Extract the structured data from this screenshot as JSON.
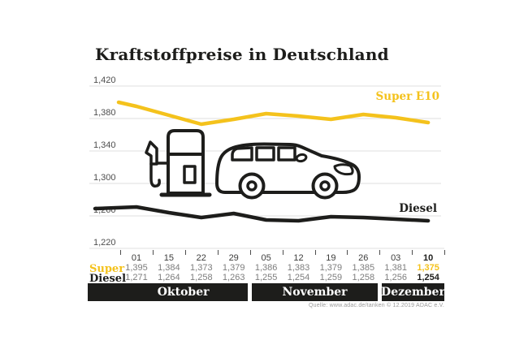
{
  "title": "Kraftstoffpreise in Deutschland",
  "source": "Quelle: www.adac.de/tanken   © 12.2019   ADAC e.V.",
  "colors": {
    "accent_yellow": "#F4C21C",
    "ink": "#1D1D1B",
    "grid": "#DFDFDF",
    "muted_value": "#7D7D7D",
    "month_bar_bg": "#1D1D1B",
    "month_bar_text": "#FFFFFF"
  },
  "chart_data": {
    "type": "line",
    "title": "Kraftstoffpreise in Deutschland",
    "ylabel": "",
    "xlabel": "",
    "ylim": [
      1.22,
      1.42
    ],
    "grid": true,
    "legend_position": "inline-right-of-lines",
    "y_tick_labels": [
      "1,420",
      "1,380",
      "1,340",
      "1,300",
      "1,260",
      "1,220"
    ],
    "y_ticks": [
      1.42,
      1.38,
      1.34,
      1.3,
      1.26,
      1.22
    ],
    "categories": [
      "01",
      "15",
      "22",
      "29",
      "05",
      "12",
      "19",
      "26",
      "03",
      "10"
    ],
    "month_groups": [
      {
        "label": "Oktober",
        "span": 4
      },
      {
        "label": "November",
        "span": 4
      },
      {
        "label": "Dezember",
        "span": 2
      }
    ],
    "series": [
      {
        "name": "Super E10",
        "color": "#F4C21C",
        "values": [
          1.395,
          1.384,
          1.373,
          1.379,
          1.386,
          1.383,
          1.379,
          1.385,
          1.381,
          1.375
        ],
        "edge_start_value": 1.4
      },
      {
        "name": "Diesel",
        "color": "#1D1D1B",
        "values": [
          1.271,
          1.264,
          1.258,
          1.263,
          1.255,
          1.254,
          1.259,
          1.258,
          1.256,
          1.254
        ],
        "edge_start_value": 1.269
      }
    ]
  },
  "table": {
    "row_labels": {
      "super": "Super",
      "diesel": "Diesel"
    },
    "dates": [
      "01",
      "15",
      "22",
      "29",
      "05",
      "12",
      "19",
      "26",
      "03",
      "10"
    ],
    "super_display": [
      "1,395",
      "1,384",
      "1,373",
      "1,379",
      "1,386",
      "1,383",
      "1,379",
      "1,385",
      "1,381",
      "1,375"
    ],
    "diesel_display": [
      "1,271",
      "1,264",
      "1,258",
      "1,263",
      "1,255",
      "1,254",
      "1,259",
      "1,258",
      "1,256",
      "1,254"
    ]
  }
}
